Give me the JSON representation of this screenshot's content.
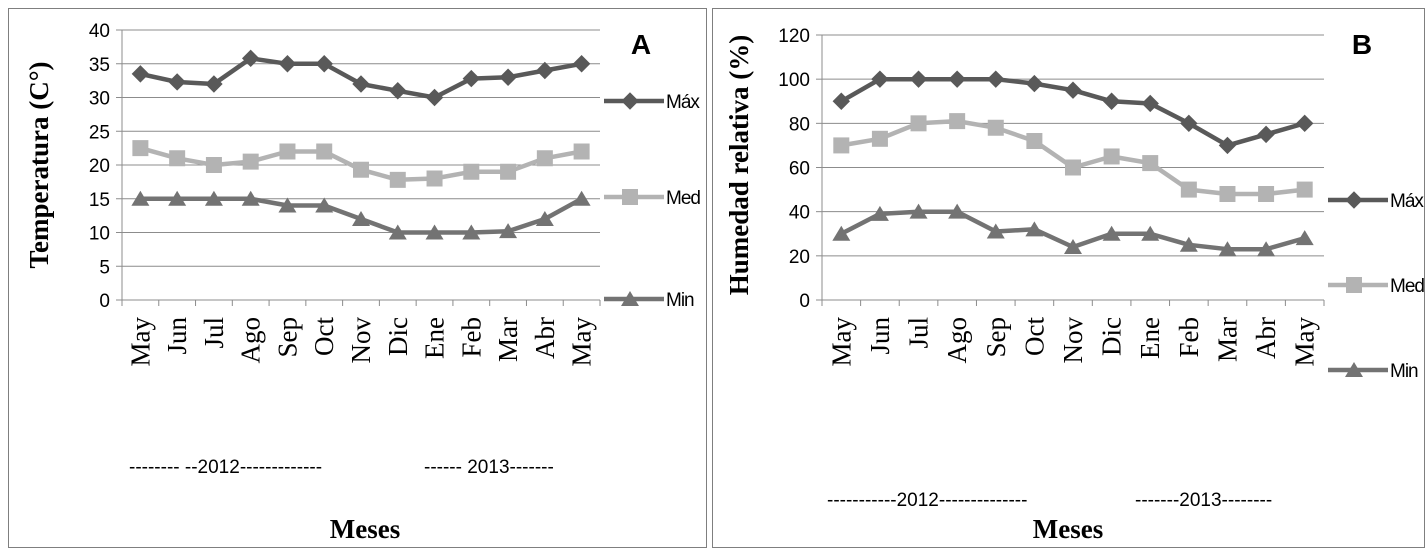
{
  "chart_data": [
    {
      "type": "line",
      "panel_label": "A",
      "categories": [
        "May",
        "Jun",
        "Jul",
        "Ago",
        "Sep",
        "Oct",
        "Nov",
        "Dic",
        "Ene",
        "Feb",
        "Mar",
        "Abr",
        "May"
      ],
      "series": [
        {
          "name": "Máx",
          "marker": "diamond",
          "color": "#595959",
          "values": [
            33.5,
            32.3,
            32.0,
            35.8,
            35.0,
            35.0,
            32.0,
            31.0,
            30.0,
            32.8,
            33.0,
            34.0,
            35.0
          ]
        },
        {
          "name": "Med",
          "marker": "square",
          "color": "#b3b3b3",
          "values": [
            22.5,
            21.0,
            20.0,
            20.5,
            22.0,
            22.0,
            19.3,
            17.8,
            18.0,
            19.0,
            19.0,
            21.0,
            22.0
          ]
        },
        {
          "name": "Min",
          "marker": "triangle",
          "color": "#737373",
          "values": [
            15.0,
            15.0,
            15.0,
            15.0,
            14.0,
            14.0,
            12.0,
            10.0,
            10.0,
            10.0,
            10.2,
            12.0,
            15.0
          ]
        }
      ],
      "ylabel": "Temperatura  (C°)",
      "xlabel": "Meses",
      "year_labels": [
        "-------- --2012-------------",
        "------ 2013-------"
      ],
      "ylim": [
        0,
        40
      ],
      "yticks": [
        0,
        5,
        10,
        15,
        20,
        25,
        30,
        35,
        40
      ],
      "grid": true,
      "legend": "right"
    },
    {
      "type": "line",
      "panel_label": "B",
      "categories": [
        "May",
        "Jun",
        "Jul",
        "Ago",
        "Sep",
        "Oct",
        "Nov",
        "Dic",
        "Ene",
        "Feb",
        "Mar",
        "Abr",
        "May"
      ],
      "series": [
        {
          "name": "Máx",
          "marker": "diamond",
          "color": "#595959",
          "values": [
            90,
            100,
            100,
            100,
            100,
            98,
            95,
            90,
            89,
            80,
            70,
            75,
            80
          ]
        },
        {
          "name": "Med",
          "marker": "square",
          "color": "#b3b3b3",
          "values": [
            70,
            73,
            80,
            81,
            78,
            72,
            60,
            65,
            62,
            50,
            48,
            48,
            50
          ]
        },
        {
          "name": "Min",
          "marker": "triangle",
          "color": "#737373",
          "values": [
            30,
            39,
            40,
            40,
            31,
            32,
            24,
            30,
            30,
            25,
            23,
            23,
            28
          ]
        }
      ],
      "ylabel": "Humedad relativa (%)",
      "xlabel": "Meses",
      "year_labels": [
        "-----------2012--------------",
        "-------2013--------"
      ],
      "ylim": [
        0,
        120
      ],
      "yticks": [
        0,
        20,
        40,
        60,
        80,
        100,
        120
      ],
      "grid": true,
      "legend": "right"
    }
  ]
}
